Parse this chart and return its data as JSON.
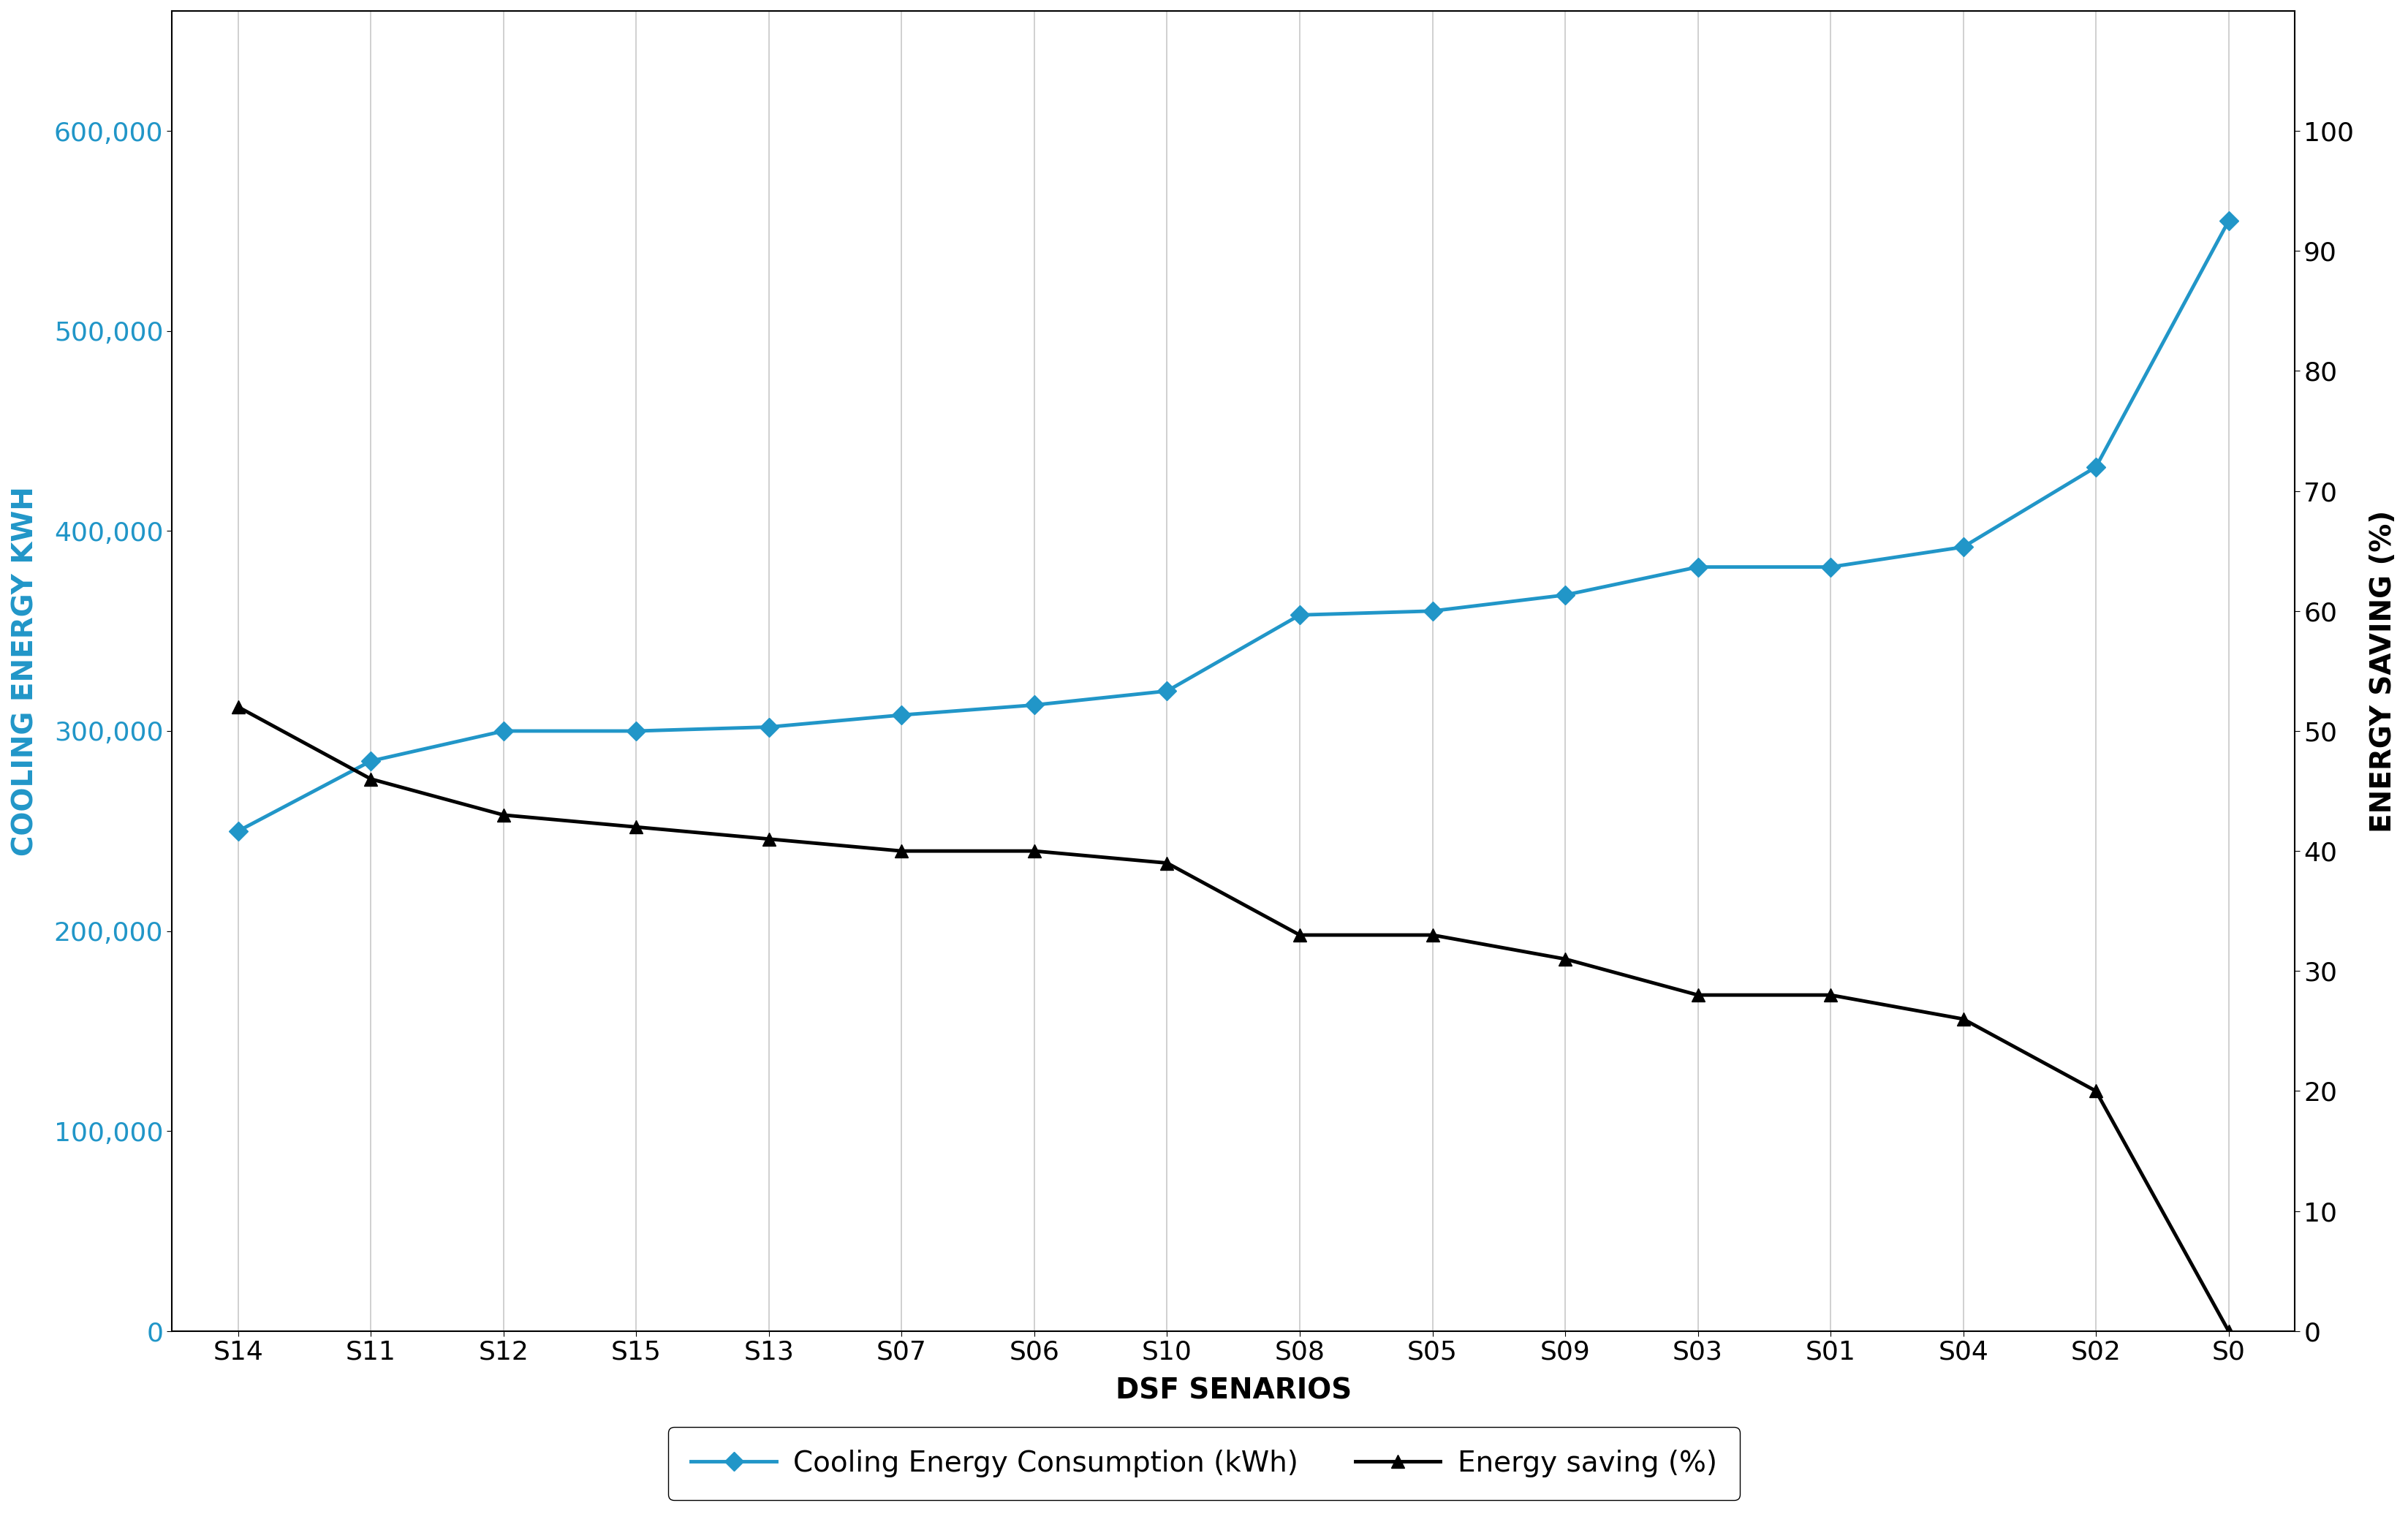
{
  "categories": [
    "S14",
    "S11",
    "S12",
    "S15",
    "S13",
    "S07",
    "S06",
    "S10",
    "S08",
    "S05",
    "S09",
    "S03",
    "S01",
    "S04",
    "S02",
    "S0"
  ],
  "cooling_energy": [
    250000,
    285000,
    300000,
    300000,
    302000,
    308000,
    313000,
    320000,
    358000,
    360000,
    368000,
    382000,
    382000,
    392000,
    432000,
    555000
  ],
  "energy_saving": [
    52,
    46,
    43,
    42,
    41,
    40,
    40,
    39,
    33,
    33,
    31,
    28,
    28,
    26,
    20,
    0
  ],
  "cooling_color": "#2196C8",
  "saving_color": "#000000",
  "left_ylabel": "COOLING ENERGY KWH",
  "right_ylabel": "ENERGY SAVING (%)",
  "xlabel": "DSF SENARIOS",
  "left_ylim": [
    0,
    660000
  ],
  "right_ylim": [
    0,
    110
  ],
  "left_yticks": [
    0,
    100000,
    200000,
    300000,
    400000,
    500000,
    600000
  ],
  "right_yticks": [
    0,
    10,
    20,
    30,
    40,
    50,
    60,
    70,
    80,
    90,
    100
  ],
  "legend_cooling": "Cooling Energy Consumption (kWh)",
  "legend_saving": "Energy saving (%)",
  "background_color": "#ffffff",
  "grid_color": "#c8c8c8",
  "label_fontsize": 28,
  "tick_fontsize": 26,
  "legend_fontsize": 28,
  "linewidth": 3.5,
  "markersize": 13
}
